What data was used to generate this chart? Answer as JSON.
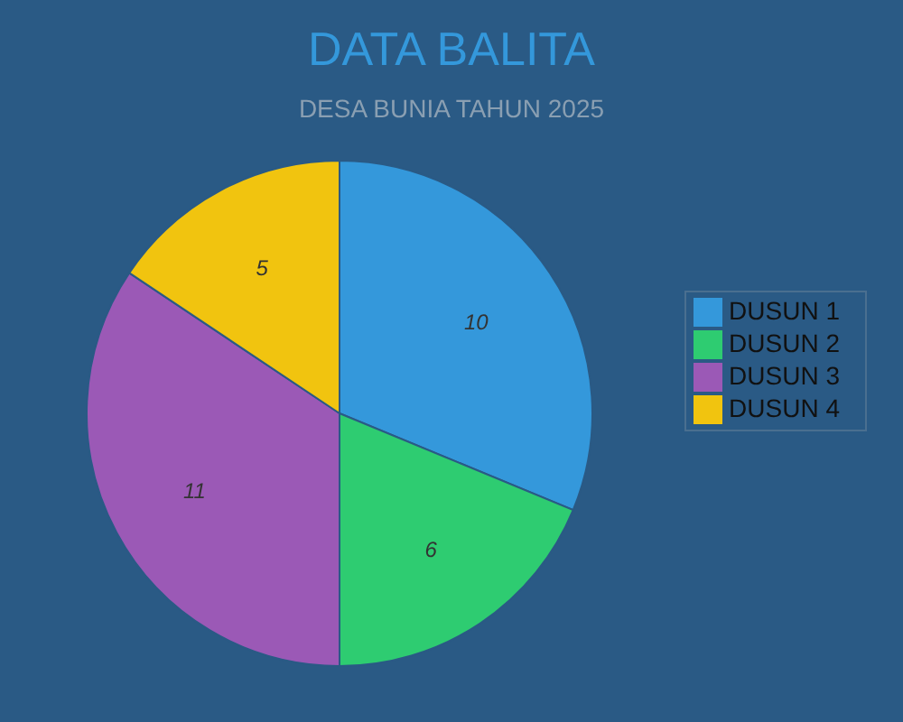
{
  "chart_data": {
    "type": "pie",
    "title": "DATA BALITA",
    "subtitle": "DESA BUNIA TAHUN 2025",
    "categories": [
      "DUSUN 1",
      "DUSUN 2",
      "DUSUN 3",
      "DUSUN 4"
    ],
    "values": [
      10,
      6,
      11,
      5
    ],
    "colors": [
      "#3498db",
      "#2ecc71",
      "#9b59b6",
      "#f1c40f"
    ],
    "data_labels": true,
    "legend": "right"
  }
}
